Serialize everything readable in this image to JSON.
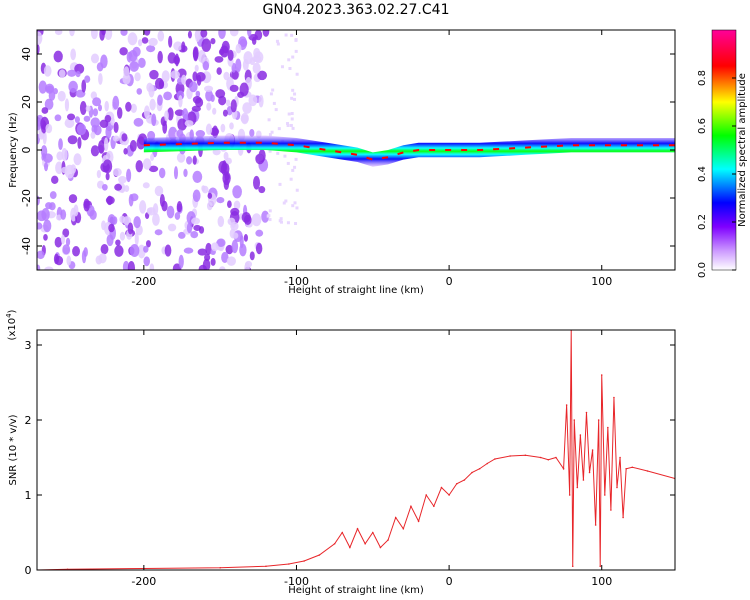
{
  "chart_data": [
    {
      "type": "heatmap",
      "title": "GN04.2023.363.02.27.C41",
      "xlabel": "Height of straight line (km)",
      "ylabel": "Frequency (Hz)",
      "xlim": [
        -270,
        148
      ],
      "ylim": [
        -50,
        50
      ],
      "x_ticks": [
        -200,
        -100,
        0,
        100
      ],
      "y_ticks": [
        -40,
        -20,
        0,
        20,
        40
      ],
      "colorbar": {
        "label": "Normalized spectral amplitude",
        "range": [
          0,
          1
        ],
        "ticks": [
          "0.0",
          "0.2",
          "0.4",
          "0.6",
          "0.8"
        ],
        "colors": [
          "#ffffff",
          "#cc99ff",
          "#7f00ff",
          "#0000ff",
          "#00ffff",
          "#00ff00",
          "#ffff00",
          "#ff0000",
          "#ff0099"
        ]
      },
      "ridge_frequency": {
        "x": [
          -200,
          -150,
          -120,
          -100,
          -80,
          -60,
          -50,
          -40,
          -30,
          -20,
          0,
          20,
          50,
          80,
          100,
          120,
          148
        ],
        "y": [
          2,
          3,
          3,
          2,
          0,
          -2,
          -4,
          -3,
          -1,
          0,
          0,
          0,
          1,
          2,
          2,
          2,
          2
        ]
      },
      "noise_region_x": [
        -270,
        -120
      ]
    },
    {
      "type": "line",
      "xlabel": "Height of straight line (km)",
      "ylabel": "SNR (10 * v/v)",
      "y_multiplier": "(x10",
      "y_multiplier_exp": "4",
      "y_multiplier_close": ")",
      "xlim": [
        -270,
        148
      ],
      "ylim": [
        0,
        3.2
      ],
      "x_ticks": [
        -200,
        -100,
        0,
        100
      ],
      "y_ticks": [
        0,
        1,
        2,
        3
      ],
      "series": [
        {
          "color": "#e8262a",
          "x": [
            -270,
            -250,
            -200,
            -150,
            -120,
            -105,
            -95,
            -85,
            -75,
            -70,
            -65,
            -60,
            -55,
            -50,
            -45,
            -40,
            -35,
            -30,
            -25,
            -20,
            -15,
            -10,
            -5,
            0,
            5,
            10,
            15,
            20,
            25,
            30,
            40,
            50,
            60,
            65,
            70,
            75,
            77,
            79,
            80,
            81,
            82,
            84,
            86,
            88,
            90,
            92,
            94,
            96,
            98,
            99,
            100,
            102,
            104,
            106,
            108,
            110,
            112,
            114,
            116,
            120,
            130,
            148
          ],
          "y": [
            0.0,
            0.01,
            0.02,
            0.03,
            0.05,
            0.08,
            0.12,
            0.2,
            0.35,
            0.5,
            0.3,
            0.55,
            0.35,
            0.5,
            0.3,
            0.4,
            0.7,
            0.55,
            0.85,
            0.65,
            1.0,
            0.85,
            1.1,
            1.0,
            1.15,
            1.2,
            1.3,
            1.35,
            1.42,
            1.48,
            1.52,
            1.53,
            1.5,
            1.47,
            1.5,
            1.35,
            2.2,
            1.0,
            3.2,
            0.05,
            2.0,
            1.1,
            1.8,
            1.2,
            2.1,
            1.3,
            1.6,
            0.6,
            2.0,
            0.05,
            2.6,
            1.0,
            1.9,
            0.8,
            2.3,
            1.1,
            1.5,
            0.7,
            1.35,
            1.37,
            1.32,
            1.22
          ]
        }
      ]
    }
  ]
}
